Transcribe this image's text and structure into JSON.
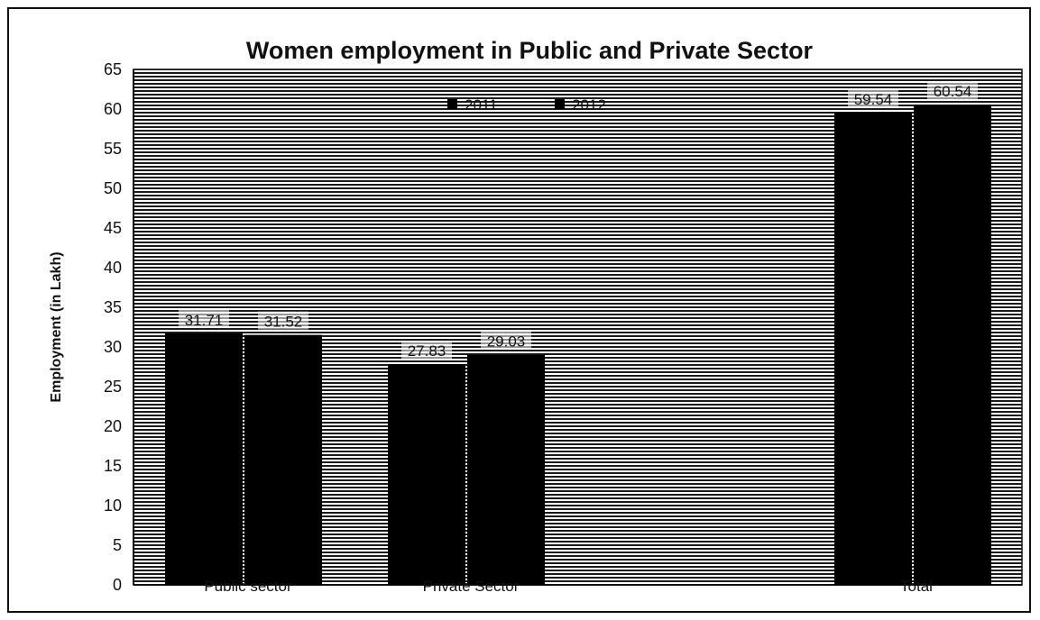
{
  "chart_data": {
    "type": "bar",
    "title": "Women employment in Public and Private Sector",
    "ylabel": "Employment (in Lakh)",
    "xlabel": "",
    "categories": [
      "Public sector",
      "Private Sector",
      "Total"
    ],
    "series": [
      {
        "name": "2011",
        "values": [
          31.71,
          27.83,
          59.54
        ],
        "color": "#000000"
      },
      {
        "name": "2012",
        "values": [
          31.52,
          29.03,
          60.54
        ],
        "color": "#000000"
      }
    ],
    "data_labels": [
      [
        "31.71",
        "27.83",
        "59.54"
      ],
      [
        "31.52",
        "29.03",
        "60.54"
      ]
    ],
    "yticks": [
      0,
      5,
      10,
      15,
      20,
      25,
      30,
      35,
      40,
      45,
      50,
      55,
      60,
      65
    ],
    "ylim": [
      0,
      65
    ],
    "grid": true,
    "background_pattern": "horizontal-lines",
    "legend_position": "top-center"
  }
}
